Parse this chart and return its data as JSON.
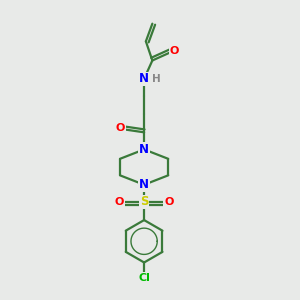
{
  "bg_color": "#e8eae8",
  "bond_color": "#3a7a3a",
  "bond_width": 1.6,
  "atom_colors": {
    "O": "#ff0000",
    "N": "#0000ff",
    "S": "#cccc00",
    "Cl": "#00bb00",
    "H": "#888888",
    "C": "#3a7a3a"
  },
  "figsize": [
    3.0,
    3.0
  ],
  "dpi": 100
}
